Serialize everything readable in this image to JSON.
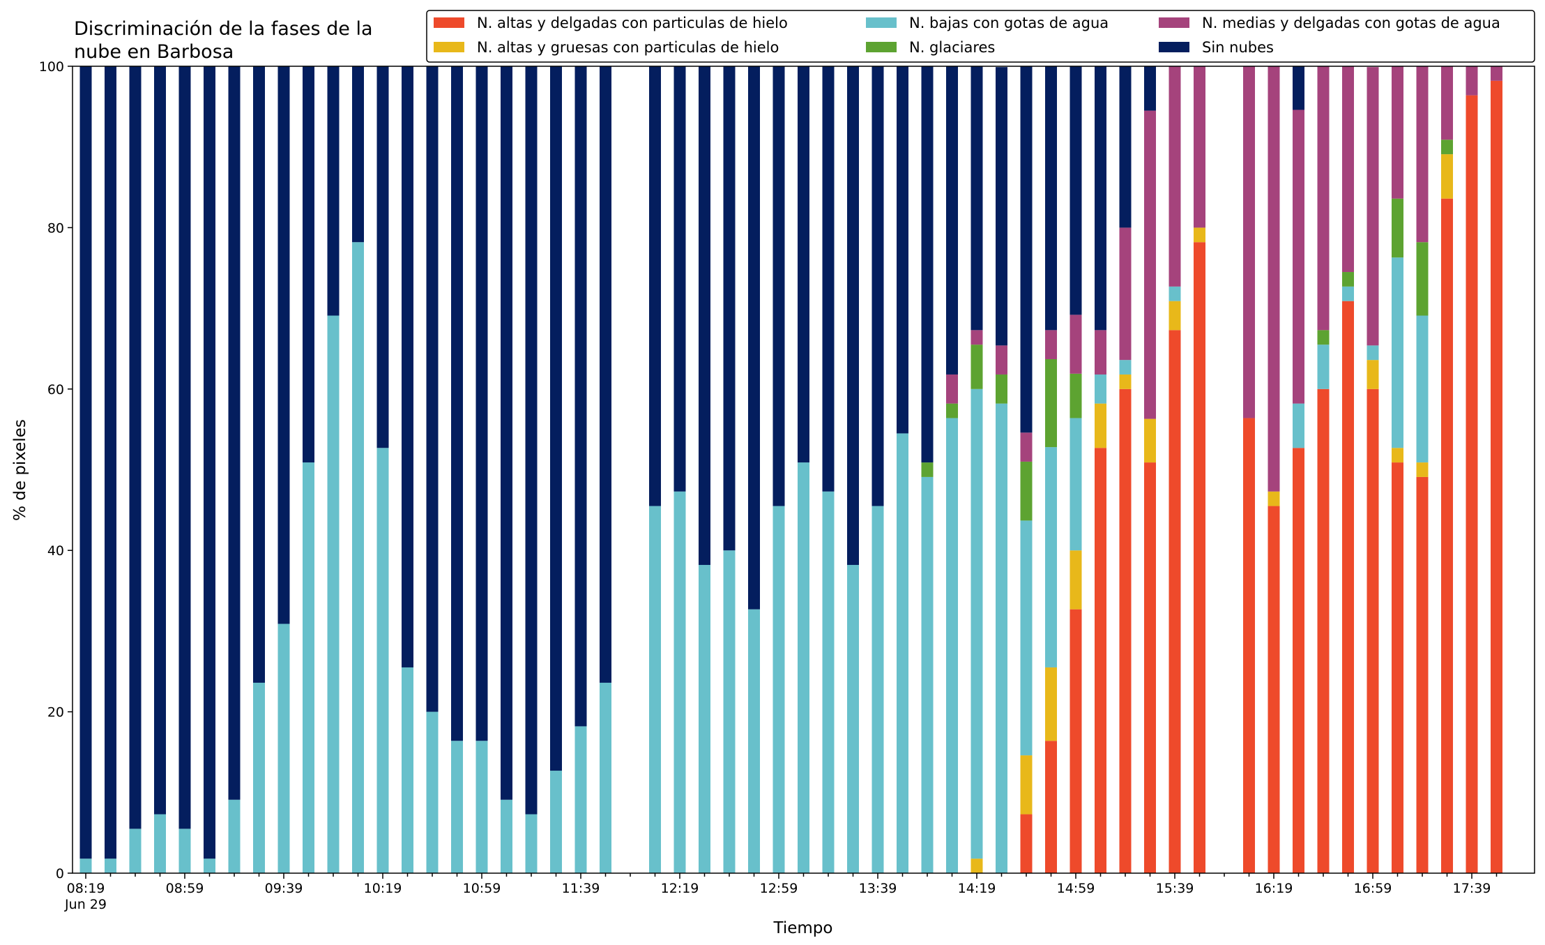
{
  "chart_data": {
    "type": "bar",
    "stacked": true,
    "title_lines": [
      "Discriminación de la fases de la",
      "nube en Barbosa"
    ],
    "xlabel": "Tiempo",
    "ylabel": "% de pixeles",
    "ylim": [
      0,
      100
    ],
    "yticks": [
      0,
      20,
      40,
      60,
      80,
      100
    ],
    "xtick_labels": [
      {
        "index": 0,
        "label": "08:19",
        "sublabel": "Jun 29"
      },
      {
        "index": 4,
        "label": "08:59"
      },
      {
        "index": 8,
        "label": "09:39"
      },
      {
        "index": 12,
        "label": "10:19"
      },
      {
        "index": 16,
        "label": "10:59"
      },
      {
        "index": 20,
        "label": "11:39"
      },
      {
        "index": 24,
        "label": "12:19"
      },
      {
        "index": 28,
        "label": "12:59"
      },
      {
        "index": 32,
        "label": "13:39"
      },
      {
        "index": 36,
        "label": "14:19"
      },
      {
        "index": 40,
        "label": "14:59"
      },
      {
        "index": 44,
        "label": "15:39"
      },
      {
        "index": 48,
        "label": "16:19"
      },
      {
        "index": 52,
        "label": "16:59"
      },
      {
        "index": 56,
        "label": "17:39"
      }
    ],
    "n_slots": 58,
    "legend": {
      "placement": "top-right",
      "columns": 3
    },
    "grid": false,
    "series": [
      {
        "name": "N. altas y delgadas con particulas de hielo",
        "color": "#ee4a2b",
        "values": [
          0,
          0,
          0,
          0,
          0,
          0,
          0,
          0,
          0,
          0,
          0,
          0,
          0,
          0,
          0,
          0,
          0,
          0,
          0,
          0,
          0,
          0,
          null,
          0,
          0,
          0,
          0,
          0,
          0,
          0,
          0,
          0,
          0,
          0,
          0,
          0,
          0,
          0,
          7.3,
          16.4,
          32.7,
          52.7,
          60,
          50.9,
          67.3,
          78.2,
          null,
          56.4,
          45.5,
          52.7,
          60,
          70.9,
          60,
          50.9,
          49.1,
          83.6,
          96.4,
          98.2
        ]
      },
      {
        "name": "N. altas y gruesas con particulas de hielo",
        "color": "#e8b81a",
        "values": [
          0,
          0,
          0,
          0,
          0,
          0,
          0,
          0,
          0,
          0,
          0,
          0,
          0,
          0,
          0,
          0,
          0,
          0,
          0,
          0,
          0,
          0,
          null,
          0,
          0,
          0,
          0,
          0,
          0,
          0,
          0,
          0,
          0,
          0,
          0,
          0,
          1.8,
          0,
          7.3,
          9.1,
          7.3,
          5.5,
          1.8,
          5.4,
          3.6,
          1.8,
          null,
          0,
          1.8,
          0,
          0,
          0,
          3.6,
          1.8,
          1.8,
          5.5,
          0,
          0
        ]
      },
      {
        "name": "N. bajas con gotas de agua",
        "color": "#68c0cb",
        "values": [
          1.8,
          1.8,
          5.5,
          7.3,
          5.5,
          1.8,
          9.1,
          23.6,
          30.9,
          50.9,
          69.1,
          78.2,
          52.7,
          25.5,
          20,
          16.4,
          16.4,
          9.1,
          7.3,
          12.7,
          18.2,
          23.6,
          null,
          45.5,
          47.3,
          38.2,
          40,
          32.7,
          45.5,
          50.9,
          47.3,
          38.2,
          45.5,
          54.5,
          49.1,
          56.4,
          58.2,
          58.2,
          29.1,
          27.3,
          16.4,
          3.6,
          1.8,
          0,
          1.8,
          0,
          null,
          0,
          0,
          5.5,
          5.5,
          1.8,
          1.8,
          23.6,
          18.2,
          0,
          0,
          0
        ]
      },
      {
        "name": "N. glaciares",
        "color": "#5da331",
        "values": [
          0,
          0,
          0,
          0,
          0,
          0,
          0,
          0,
          0,
          0,
          0,
          0,
          0,
          0,
          0,
          0,
          0,
          0,
          0,
          0,
          0,
          0,
          null,
          0,
          0,
          0,
          0,
          0,
          0,
          0,
          0,
          0,
          0,
          0,
          1.8,
          1.8,
          5.5,
          3.6,
          7.3,
          10.9,
          5.5,
          0,
          0,
          0,
          0,
          0,
          null,
          0,
          0,
          0,
          1.8,
          1.8,
          0,
          7.3,
          9.1,
          1.8,
          0,
          0
        ]
      },
      {
        "name": "N. medias y delgadas con gotas de agua",
        "color": "#a5437c",
        "values": [
          0,
          0,
          0,
          0,
          0,
          0,
          0,
          0,
          0,
          0,
          0,
          0,
          0,
          0,
          0,
          0,
          0,
          0,
          0,
          0,
          0,
          0,
          null,
          0,
          0,
          0,
          0,
          0,
          0,
          0,
          0,
          0,
          0,
          0,
          0,
          3.6,
          1.8,
          3.6,
          3.6,
          3.6,
          7.3,
          5.5,
          16.4,
          38.2,
          27.3,
          20,
          null,
          43.6,
          52.7,
          36.4,
          32.7,
          25.5,
          34.5,
          16.4,
          21.8,
          9.1,
          3.6,
          1.8
        ]
      },
      {
        "name": "Sin nubes",
        "color": "#041e5e",
        "values": [
          98.2,
          98.2,
          94.5,
          92.7,
          94.5,
          98.2,
          90.9,
          76.4,
          69.1,
          49.1,
          30.9,
          21.8,
          47.3,
          74.5,
          80,
          83.6,
          83.6,
          90.9,
          92.7,
          87.3,
          81.8,
          76.4,
          null,
          54.5,
          52.7,
          61.8,
          60,
          67.3,
          54.5,
          49.1,
          52.7,
          61.8,
          54.5,
          45.5,
          49.1,
          38.2,
          32.7,
          34.5,
          45.5,
          32.7,
          30.9,
          32.7,
          20,
          5.5,
          0,
          0,
          null,
          0,
          0,
          5.5,
          0,
          0,
          0,
          0,
          0,
          0,
          0,
          0
        ]
      }
    ]
  }
}
